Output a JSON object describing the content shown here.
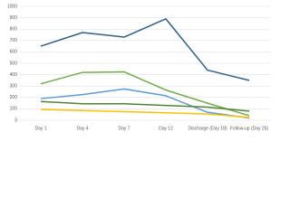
{
  "chart_data": {
    "type": "line",
    "categories": [
      "Day 1",
      "Day 4",
      "Day 7",
      "Day 12",
      "Discharge (Day 18)",
      "Follow-up (Day 25)"
    ],
    "series": [
      {
        "color": "#2e5f8a",
        "values": [
          650,
          770,
          730,
          890,
          440,
          350
        ]
      },
      {
        "color": "#70ad47",
        "values": [
          320,
          420,
          425,
          265,
          150,
          40
        ]
      },
      {
        "color": "#5b9bd5",
        "values": [
          190,
          225,
          275,
          215,
          70,
          20
        ]
      },
      {
        "color": "#548235",
        "values": [
          165,
          145,
          145,
          130,
          115,
          80
        ]
      },
      {
        "color": "#ffc000",
        "values": [
          95,
          85,
          75,
          65,
          55,
          25
        ]
      }
    ],
    "ylim": [
      0,
      1000
    ],
    "yticks": [
      0,
      100,
      200,
      300,
      400,
      500,
      600,
      700,
      800,
      900,
      1000
    ],
    "grid": true
  }
}
